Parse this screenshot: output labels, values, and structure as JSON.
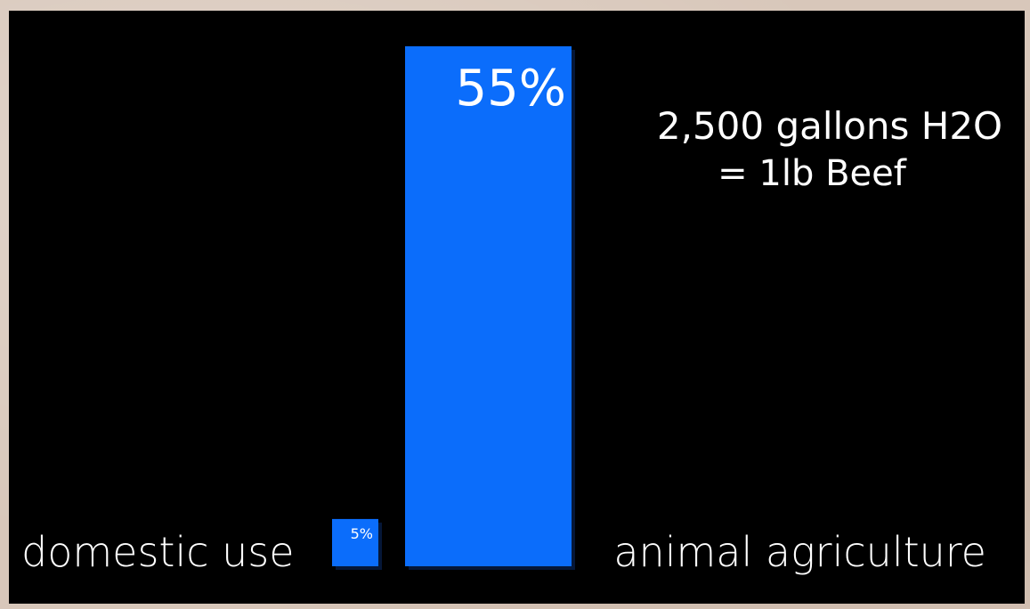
{
  "chart_data": {
    "type": "bar",
    "title": "",
    "xlabel": "",
    "ylabel": "",
    "categories": [
      "domestic use",
      "animal agriculture"
    ],
    "values": [
      5,
      55
    ],
    "value_labels": [
      "5%",
      "55%"
    ],
    "ylim": [
      0,
      55
    ],
    "grid": false,
    "legend": "none",
    "annotation": {
      "line1": "2,500 gallons H2O",
      "line2": "= 1lb Beef"
    },
    "colors": {
      "bar": "#0b6dfb",
      "background": "#000000",
      "text": "#ffffff",
      "page": "#d8c7ba"
    }
  }
}
